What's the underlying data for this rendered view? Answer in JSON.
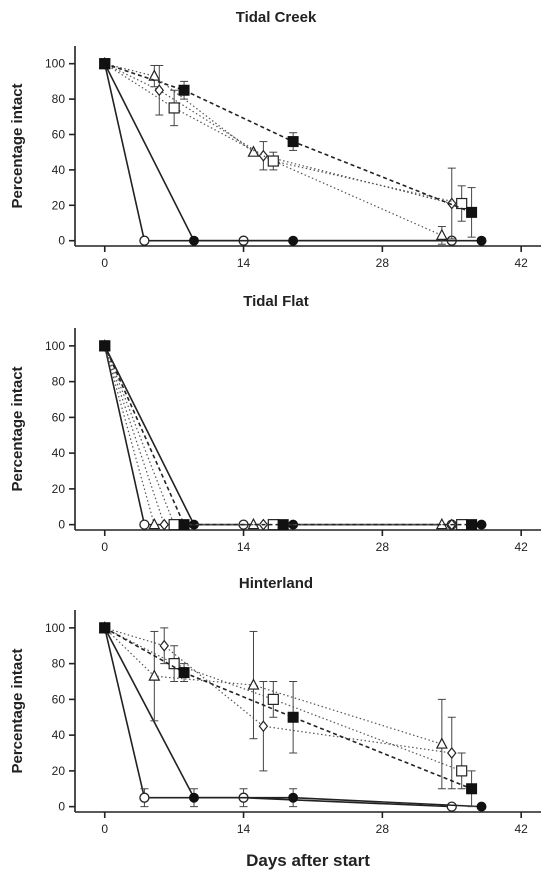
{
  "chart_data": [
    {
      "type": "line",
      "title": "Tidal Creek",
      "ylabel": "Percentage intact",
      "xlabel": "",
      "xticks": [
        0,
        14,
        28,
        42
      ],
      "yticks": [
        0,
        20,
        40,
        60,
        80,
        100
      ],
      "xlim": [
        -3,
        44
      ],
      "ylim": [
        -3,
        110
      ],
      "grid": false,
      "series": [
        {
          "marker": "open-circle",
          "line": "solid",
          "points": [
            [
              0,
              100
            ],
            [
              4,
              0
            ],
            [
              14,
              0
            ],
            [
              35,
              0
            ]
          ]
        },
        {
          "marker": "filled-circle",
          "line": "solid",
          "points": [
            [
              0,
              100
            ],
            [
              9,
              0
            ],
            [
              19,
              0
            ],
            [
              38,
              0
            ]
          ]
        },
        {
          "marker": "open-triangle",
          "line": "dotted",
          "points": [
            [
              0,
              100
            ],
            [
              5,
              93
            ],
            [
              15,
              50
            ],
            [
              34,
              3
            ]
          ],
          "err": [
            null,
            6,
            null,
            5
          ]
        },
        {
          "marker": "open-diamond",
          "line": "dotted",
          "points": [
            [
              0,
              100
            ],
            [
              5.5,
              85
            ],
            [
              16,
              48
            ],
            [
              35,
              21
            ]
          ],
          "err": [
            null,
            14,
            8,
            20
          ]
        },
        {
          "marker": "open-square",
          "line": "dotted",
          "points": [
            [
              0,
              100
            ],
            [
              7,
              75
            ],
            [
              17,
              45
            ],
            [
              36,
              21
            ]
          ],
          "err": [
            null,
            10,
            5,
            10
          ]
        },
        {
          "marker": "filled-square",
          "line": "dashed",
          "points": [
            [
              0,
              100
            ],
            [
              8,
              85
            ],
            [
              19,
              56
            ],
            [
              37,
              16
            ]
          ],
          "err": [
            null,
            5,
            5,
            14
          ]
        }
      ]
    },
    {
      "type": "line",
      "title": "Tidal Flat",
      "ylabel": "Percentage intact",
      "xlabel": "",
      "xticks": [
        0,
        14,
        28,
        42
      ],
      "yticks": [
        0,
        20,
        40,
        60,
        80,
        100
      ],
      "xlim": [
        -3,
        44
      ],
      "ylim": [
        -3,
        110
      ],
      "grid": false,
      "series": [
        {
          "marker": "open-circle",
          "line": "solid",
          "points": [
            [
              0,
              100
            ],
            [
              4,
              0
            ],
            [
              14,
              0
            ],
            [
              35,
              0
            ]
          ]
        },
        {
          "marker": "filled-circle",
          "line": "solid",
          "points": [
            [
              0,
              100
            ],
            [
              9,
              0
            ],
            [
              19,
              0
            ],
            [
              38,
              0
            ]
          ]
        },
        {
          "marker": "open-triangle",
          "line": "dotted",
          "points": [
            [
              0,
              100
            ],
            [
              5,
              0
            ],
            [
              15,
              0
            ],
            [
              34,
              0
            ]
          ]
        },
        {
          "marker": "open-diamond",
          "line": "dotted",
          "points": [
            [
              0,
              100
            ],
            [
              6,
              0
            ],
            [
              16,
              0
            ],
            [
              35,
              0
            ]
          ]
        },
        {
          "marker": "open-square",
          "line": "dotted",
          "points": [
            [
              0,
              100
            ],
            [
              7,
              0
            ],
            [
              17,
              0
            ],
            [
              36,
              0
            ]
          ]
        },
        {
          "marker": "filled-square",
          "line": "dashed",
          "points": [
            [
              0,
              100
            ],
            [
              8,
              0
            ],
            [
              18,
              0
            ],
            [
              37,
              0
            ]
          ]
        }
      ]
    },
    {
      "type": "line",
      "title": "Hinterland",
      "ylabel": "Percentage intact",
      "xlabel": "Days after start",
      "xticks": [
        0,
        14,
        28,
        42
      ],
      "yticks": [
        0,
        20,
        40,
        60,
        80,
        100
      ],
      "xlim": [
        -3,
        44
      ],
      "ylim": [
        -3,
        110
      ],
      "grid": false,
      "series": [
        {
          "marker": "open-circle",
          "line": "solid",
          "points": [
            [
              0,
              100
            ],
            [
              4,
              5
            ],
            [
              14,
              5
            ],
            [
              35,
              0
            ]
          ],
          "err": [
            null,
            5,
            5,
            null
          ]
        },
        {
          "marker": "filled-circle",
          "line": "solid",
          "points": [
            [
              0,
              100
            ],
            [
              9,
              5
            ],
            [
              19,
              5
            ],
            [
              38,
              0
            ]
          ],
          "err": [
            null,
            5,
            5,
            null
          ]
        },
        {
          "marker": "open-triangle",
          "line": "dotted",
          "points": [
            [
              0,
              100
            ],
            [
              5,
              73
            ],
            [
              15,
              68
            ],
            [
              34,
              35
            ]
          ],
          "err": [
            null,
            25,
            30,
            25
          ]
        },
        {
          "marker": "open-diamond",
          "line": "dotted",
          "points": [
            [
              0,
              100
            ],
            [
              6,
              90
            ],
            [
              16,
              45
            ],
            [
              35,
              30
            ]
          ],
          "err": [
            null,
            10,
            25,
            20
          ]
        },
        {
          "marker": "open-square",
          "line": "dotted",
          "points": [
            [
              0,
              100
            ],
            [
              7,
              80
            ],
            [
              17,
              60
            ],
            [
              36,
              20
            ]
          ],
          "err": [
            null,
            10,
            10,
            10
          ]
        },
        {
          "marker": "filled-square",
          "line": "dashed",
          "points": [
            [
              0,
              100
            ],
            [
              8,
              75
            ],
            [
              19,
              50
            ],
            [
              37,
              10
            ]
          ],
          "err": [
            null,
            5,
            20,
            10
          ]
        }
      ]
    }
  ]
}
